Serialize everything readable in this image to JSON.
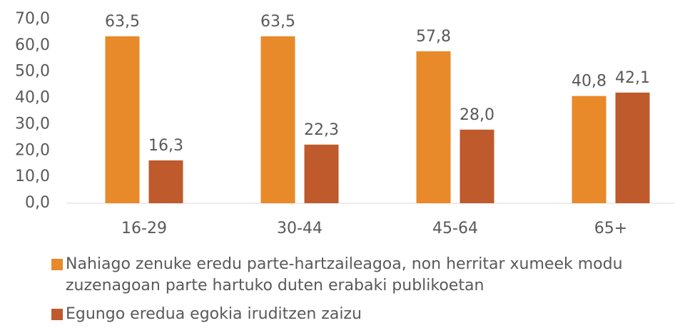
{
  "chart_data": {
    "type": "bar",
    "categories": [
      "16-29",
      "30-44",
      "45-64",
      "65+"
    ],
    "series": [
      {
        "name": "Nahiago zenuke eredu parte-hartzaileagoa, non herritar xumeek modu zuzenagoan parte hartuko duten erabaki publikoetan",
        "color": "#E8892A",
        "values": [
          63.5,
          63.5,
          57.8,
          40.8
        ],
        "value_labels": [
          "63,5",
          "63,5",
          "57,8",
          "40,8"
        ]
      },
      {
        "name": "Egungo eredua egokia iruditzen zaizu",
        "color": "#BE5A2C",
        "values": [
          16.3,
          22.3,
          28.0,
          42.1
        ],
        "value_labels": [
          "16,3",
          "22,3",
          "28,0",
          "42,1"
        ]
      }
    ],
    "ylim": [
      0,
      70
    ],
    "yticks": [
      {
        "value": 0,
        "label": "0,0"
      },
      {
        "value": 10,
        "label": "10,0"
      },
      {
        "value": 20,
        "label": "20,0"
      },
      {
        "value": 30,
        "label": "30,0"
      },
      {
        "value": 40,
        "label": "40,0"
      },
      {
        "value": 50,
        "label": "50,0"
      },
      {
        "value": 60,
        "label": "60,0"
      },
      {
        "value": 70,
        "label": "70,0"
      }
    ],
    "grid": false
  }
}
